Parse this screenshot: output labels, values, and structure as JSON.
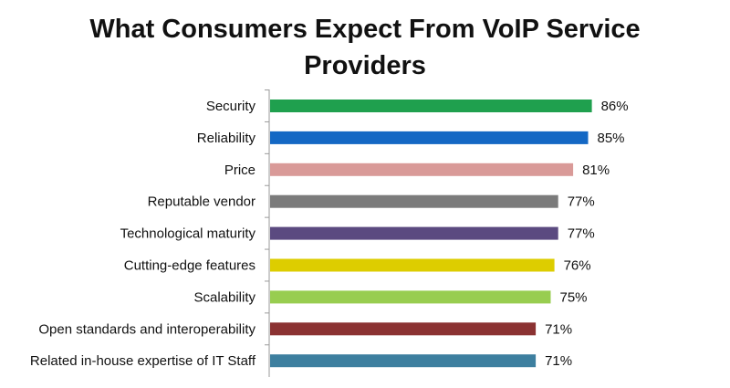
{
  "chart_data": {
    "type": "bar",
    "orientation": "horizontal",
    "title": "What Consumers Expect From VoIP Service Providers",
    "xlabel": "",
    "ylabel": "",
    "xlim": [
      0,
      100
    ],
    "grid": false,
    "categories": [
      "Security",
      "Reliability",
      "Price",
      "Reputable vendor",
      "Technological maturity",
      "Cutting-edge features",
      "Scalability",
      "Open standards and interoperability",
      "Related in-house expertise of IT Staff"
    ],
    "values": [
      86,
      85,
      81,
      77,
      77,
      76,
      75,
      71,
      71
    ],
    "value_labels": [
      "86%",
      "85%",
      "81%",
      "77%",
      "77%",
      "76%",
      "75%",
      "71%",
      "71%"
    ],
    "colors": [
      "#1fa04e",
      "#1468c4",
      "#d99a98",
      "#7b7b7b",
      "#5b4a80",
      "#ddcd00",
      "#98cd50",
      "#8b3232",
      "#3d7f9f"
    ]
  }
}
